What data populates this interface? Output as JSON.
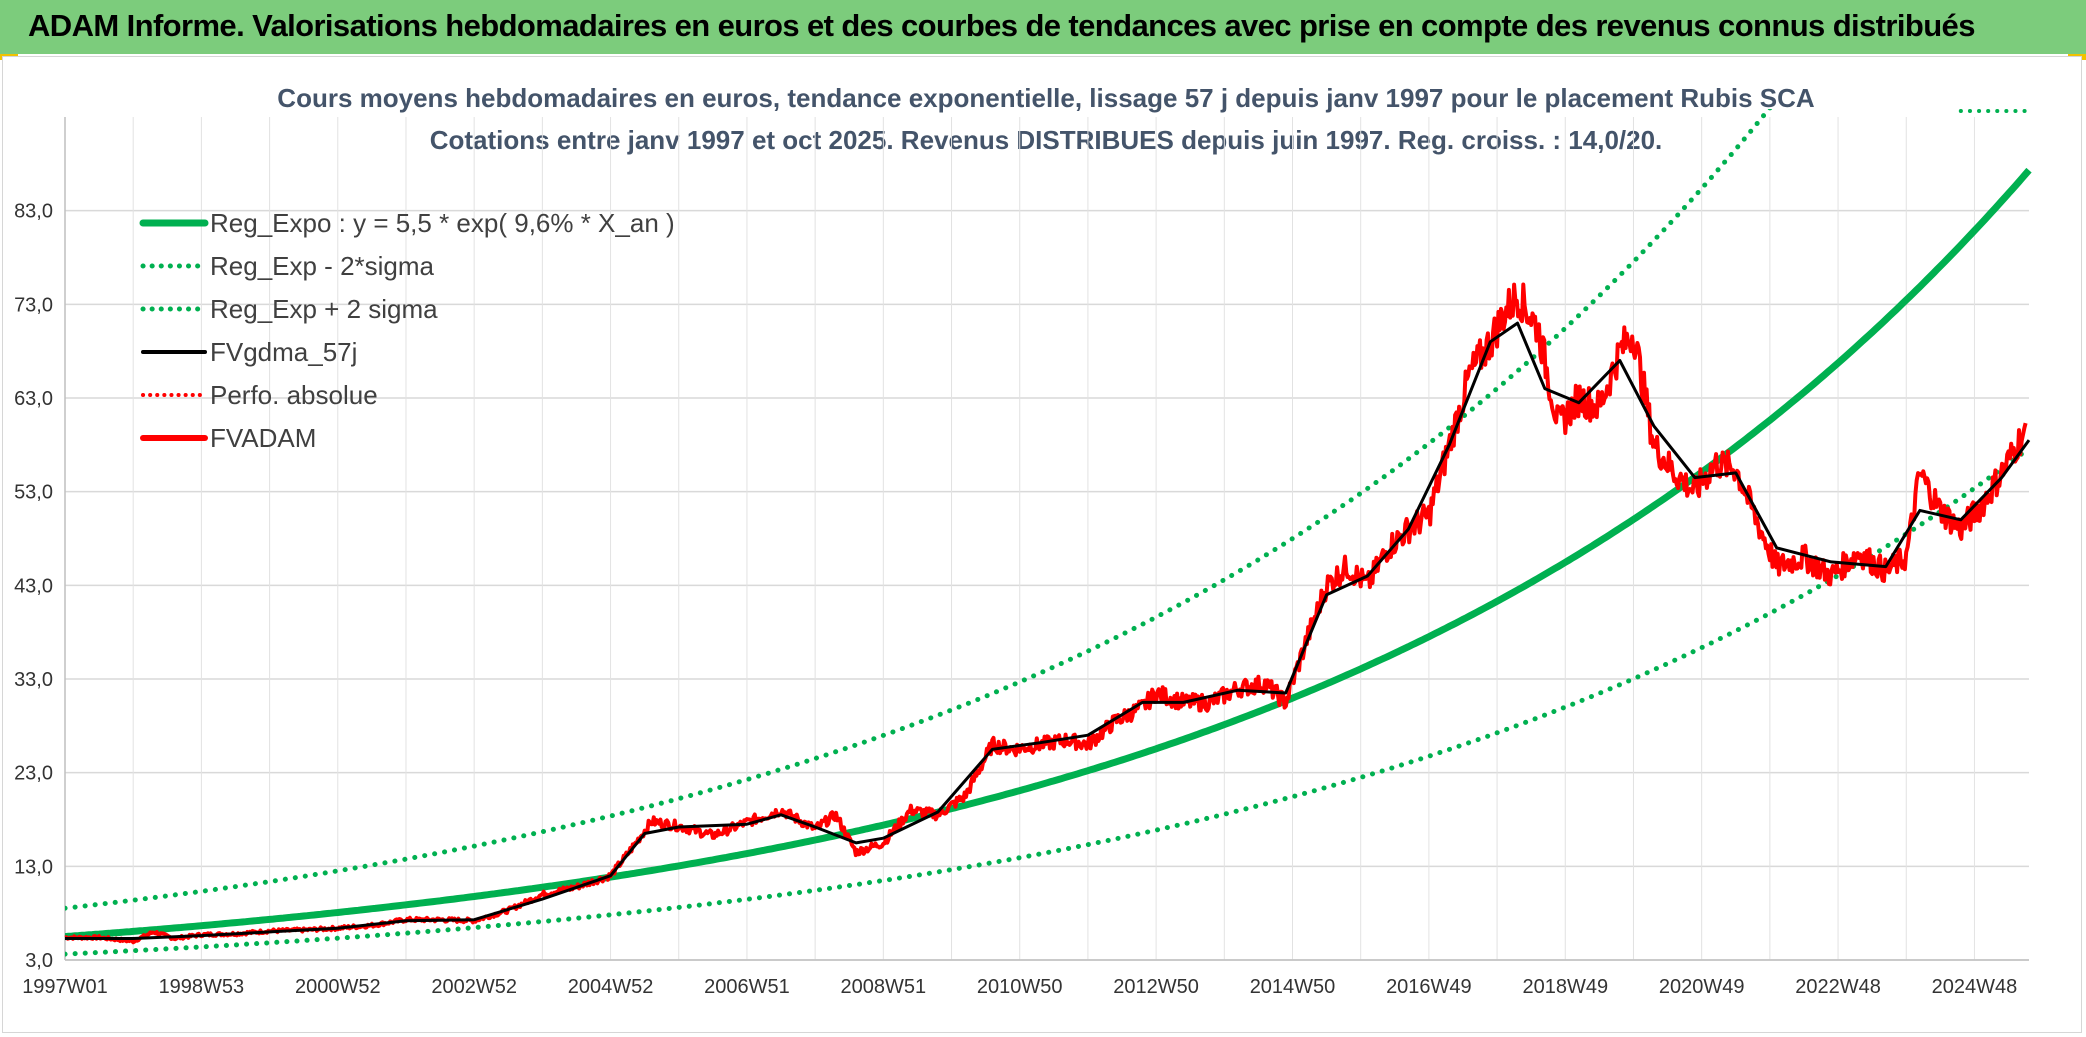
{
  "header": {
    "title": "ADAM Informe. Valorisations hebdomadaires en euros et des courbes de tendances avec prise en compte des revenus connus distribués"
  },
  "colors": {
    "banner": "#7ccc7c",
    "trend": "#00b050",
    "smooth": "#000000",
    "price": "#ff0000",
    "perf": "#ff0000",
    "subtitle": "#44546a"
  },
  "chart_data": {
    "type": "line",
    "title_line1": "Cours moyens hebdomadaires en euros, tendance exponentielle, lissage 57 j depuis janv 1997 pour le placement Rubis SCA",
    "title_line2": "Cotations entre janv 1997 et oct 2025. Revenus DISTRIBUES depuis juin 1997. Reg. croiss. : 14,0/20.",
    "ylim": [
      3,
      93
    ],
    "y_ticks": [
      "3,0",
      "13,0",
      "23,0",
      "33,0",
      "43,0",
      "53,0",
      "63,0",
      "73,0",
      "83,0"
    ],
    "y_tick_values": [
      3,
      13,
      23,
      33,
      43,
      53,
      63,
      73,
      83
    ],
    "xlim": [
      1997.0,
      2025.8
    ],
    "x_ticks": [
      "1997W01",
      "1998W53",
      "2000W52",
      "2002W52",
      "2004W52",
      "2006W51",
      "2008W51",
      "2010W50",
      "2012W50",
      "2014W50",
      "2016W49",
      "2018W49",
      "2020W49",
      "2022W48",
      "2024W48"
    ],
    "x_tick_values": [
      1997.0,
      1999.0,
      2001.0,
      2003.0,
      2005.0,
      2007.0,
      2009.0,
      2011.0,
      2013.0,
      2015.0,
      2017.0,
      2019.0,
      2021.0,
      2023.0,
      2025.0
    ],
    "legend": [
      {
        "label": "Reg_Expo : y = 5,5 * exp( 9,6% *  X_an )",
        "style": "trend"
      },
      {
        "label": "Reg_Exp - 2*sigma",
        "style": "band"
      },
      {
        "label": "Reg_Exp + 2 sigma",
        "style": "band"
      },
      {
        "label": "FVgdma_57j",
        "style": "smooth"
      },
      {
        "label": "Perfo. absolue",
        "style": "perf"
      },
      {
        "label": "FVADAM",
        "style": "price"
      }
    ],
    "trend": {
      "a": 5.5,
      "r": 0.096,
      "start_year": 1997.0,
      "lower_factor": 0.66,
      "upper_factor": 1.55
    },
    "series": [
      {
        "name": "FVADAM",
        "x": [
          1997.0,
          1997.5,
          1998.0,
          1998.3,
          1998.6,
          1999.0,
          1999.5,
          2000.0,
          2000.5,
          2001.0,
          2001.5,
          2002.0,
          2002.5,
          2003.0,
          2003.5,
          2004.0,
          2004.5,
          2005.0,
          2005.3,
          2005.6,
          2006.0,
          2006.5,
          2007.0,
          2007.5,
          2008.0,
          2008.3,
          2008.6,
          2009.0,
          2009.4,
          2009.8,
          2010.2,
          2010.6,
          2010.9,
          2011.3,
          2011.7,
          2012.0,
          2012.4,
          2012.8,
          2013.0,
          2013.4,
          2013.8,
          2014.2,
          2014.6,
          2014.9,
          2015.2,
          2015.5,
          2015.8,
          2016.1,
          2016.4,
          2016.7,
          2017.0,
          2017.3,
          2017.6,
          2017.9,
          2018.1,
          2018.3,
          2018.6,
          2018.9,
          2019.2,
          2019.5,
          2019.8,
          2020.0,
          2020.3,
          2020.6,
          2020.9,
          2021.2,
          2021.5,
          2021.8,
          2022.1,
          2022.5,
          2022.9,
          2023.3,
          2023.7,
          2024.0,
          2024.2,
          2024.5,
          2024.8,
          2025.1,
          2025.4,
          2025.7
        ],
        "values": [
          5.4,
          5.4,
          5.0,
          6.0,
          5.3,
          5.7,
          5.8,
          6.1,
          6.2,
          6.4,
          6.7,
          7.3,
          7.3,
          7.2,
          8.3,
          10.0,
          10.8,
          12.0,
          14.8,
          17.8,
          17.3,
          16.3,
          17.7,
          19.0,
          17.0,
          18.5,
          14.5,
          15.5,
          19.0,
          18.5,
          20.5,
          26.0,
          25.5,
          26.0,
          26.5,
          26.0,
          28.5,
          30.0,
          31.5,
          30.5,
          30.5,
          32.0,
          32.5,
          30.5,
          37.0,
          43.0,
          45.0,
          43.0,
          47.0,
          49.0,
          50.5,
          58.0,
          65.5,
          69.0,
          72.0,
          74.0,
          70.5,
          60.0,
          63.0,
          62.0,
          68.0,
          70.0,
          58.0,
          55.0,
          53.0,
          56.0,
          55.5,
          50.0,
          45.0,
          46.0,
          44.0,
          46.5,
          44.5,
          46.0,
          55.0,
          51.0,
          49.0,
          51.5,
          55.0,
          59.0
        ]
      },
      {
        "name": "FVgdma_57j",
        "x": [
          1997.0,
          1998.0,
          1999.0,
          2000.0,
          2001.0,
          2002.0,
          2003.0,
          2004.0,
          2005.0,
          2005.5,
          2006.0,
          2007.0,
          2007.5,
          2008.0,
          2008.6,
          2009.0,
          2009.8,
          2010.6,
          2011.3,
          2012.0,
          2012.8,
          2013.4,
          2014.2,
          2014.9,
          2015.5,
          2016.1,
          2016.7,
          2017.3,
          2017.9,
          2018.3,
          2018.7,
          2019.2,
          2019.8,
          2020.3,
          2020.9,
          2021.5,
          2022.1,
          2022.9,
          2023.7,
          2024.2,
          2024.8,
          2025.4,
          2025.8
        ],
        "values": [
          5.3,
          5.3,
          5.6,
          6.0,
          6.4,
          7.2,
          7.3,
          9.5,
          12.0,
          16.5,
          17.2,
          17.5,
          18.5,
          17.2,
          15.5,
          16.0,
          18.8,
          25.5,
          26.2,
          27.0,
          30.5,
          30.5,
          31.8,
          31.5,
          42.0,
          44.0,
          49.0,
          58.0,
          69.0,
          71.0,
          64.0,
          62.5,
          67.0,
          60.0,
          54.5,
          55.0,
          47.0,
          45.5,
          45.0,
          51.0,
          50.0,
          54.5,
          58.5
        ]
      }
    ]
  }
}
